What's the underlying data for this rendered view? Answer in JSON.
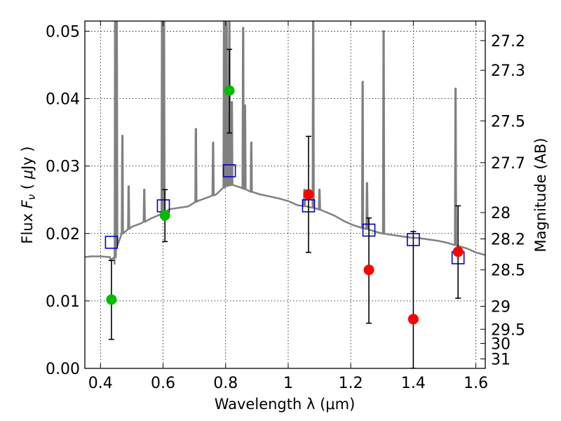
{
  "chart_data": {
    "type": "scatter",
    "xlabel": "Wavelength  λ (μm)",
    "ylabel_parts": [
      "Flux  ",
      "F",
      "ν",
      "  ( ",
      "μ",
      "Jy )"
    ],
    "ylabel_right": "Magnitude (AB)",
    "xlim": [
      0.35,
      1.63
    ],
    "ylim": [
      0.0,
      0.0515
    ],
    "x_ticks": [
      0.4,
      0.6,
      0.8,
      1.0,
      1.2,
      1.4,
      1.6
    ],
    "x_tick_labels": [
      "0.4",
      "0.6",
      "0.8",
      "1",
      "1.2",
      "1.4",
      "1.6"
    ],
    "y_ticks": [
      0.0,
      0.01,
      0.02,
      0.03,
      0.04,
      0.05
    ],
    "y_tick_labels": [
      "0.00",
      "0.01",
      "0.02",
      "0.03",
      "0.04",
      "0.05"
    ],
    "right_ticks": [
      {
        "label": "27.2",
        "flux": 0.0486
      },
      {
        "label": "27.3",
        "flux": 0.0442
      },
      {
        "label": "27.5",
        "flux": 0.0367
      },
      {
        "label": "27.7",
        "flux": 0.0305
      },
      {
        "label": "28",
        "flux": 0.0231
      },
      {
        "label": "28.2",
        "flux": 0.0192
      },
      {
        "label": "28.5",
        "flux": 0.0146
      },
      {
        "label": "29",
        "flux": 0.0092
      },
      {
        "label": "29.5",
        "flux": 0.0058
      },
      {
        "label": "30",
        "flux": 0.0037
      },
      {
        "label": "31",
        "flux": 0.0014
      }
    ],
    "grid": true,
    "colors": {
      "model": "#808080",
      "model_photometry": "#0000cc",
      "detection": "#00bb00",
      "upper_limit": "#ff0000",
      "error_bar": "#000000"
    },
    "model_spectrum": {
      "continuum": [
        [
          0.35,
          0.0165
        ],
        [
          0.37,
          0.0166
        ],
        [
          0.4,
          0.0166
        ],
        [
          0.43,
          0.0165
        ],
        [
          0.445,
          0.0155
        ],
        [
          0.45,
          0.018
        ],
        [
          0.47,
          0.02
        ],
        [
          0.5,
          0.021
        ],
        [
          0.53,
          0.0215
        ],
        [
          0.56,
          0.0222
        ],
        [
          0.59,
          0.0228
        ],
        [
          0.62,
          0.0236
        ],
        [
          0.65,
          0.0238
        ],
        [
          0.68,
          0.024
        ],
        [
          0.71,
          0.0248
        ],
        [
          0.74,
          0.0253
        ],
        [
          0.77,
          0.0258
        ],
        [
          0.8,
          0.027
        ],
        [
          0.82,
          0.0272
        ],
        [
          0.85,
          0.0268
        ],
        [
          0.88,
          0.0262
        ],
        [
          0.91,
          0.0258
        ],
        [
          0.94,
          0.0255
        ],
        [
          0.97,
          0.0252
        ],
        [
          1.0,
          0.0248
        ],
        [
          1.03,
          0.0242
        ],
        [
          1.06,
          0.024
        ],
        [
          1.09,
          0.0237
        ],
        [
          1.12,
          0.0232
        ],
        [
          1.15,
          0.0226
        ],
        [
          1.18,
          0.0218
        ],
        [
          1.21,
          0.0212
        ],
        [
          1.24,
          0.0208
        ],
        [
          1.27,
          0.0204
        ],
        [
          1.3,
          0.02
        ],
        [
          1.33,
          0.0198
        ],
        [
          1.36,
          0.0196
        ],
        [
          1.39,
          0.0194
        ],
        [
          1.42,
          0.0193
        ],
        [
          1.45,
          0.0191
        ],
        [
          1.48,
          0.0189
        ],
        [
          1.51,
          0.0186
        ],
        [
          1.54,
          0.0182
        ],
        [
          1.57,
          0.0178
        ],
        [
          1.6,
          0.0172
        ],
        [
          1.63,
          0.0168
        ]
      ],
      "emission_lines": [
        {
          "x": 0.434,
          "peak": 0.016
        },
        {
          "x": 0.447,
          "peak": 0.054
        },
        {
          "x": 0.452,
          "peak": 0.054
        },
        {
          "x": 0.47,
          "peak": 0.0345
        },
        {
          "x": 0.49,
          "peak": 0.027
        },
        {
          "x": 0.54,
          "peak": 0.0265
        },
        {
          "x": 0.597,
          "peak": 0.054
        },
        {
          "x": 0.603,
          "peak": 0.054
        },
        {
          "x": 0.705,
          "peak": 0.0355
        },
        {
          "x": 0.76,
          "peak": 0.0335
        },
        {
          "x": 0.795,
          "peak": 0.054
        },
        {
          "x": 0.803,
          "peak": 0.054
        },
        {
          "x": 0.812,
          "peak": 0.054
        },
        {
          "x": 0.82,
          "peak": 0.0395
        },
        {
          "x": 0.856,
          "peak": 0.0505
        },
        {
          "x": 0.862,
          "peak": 0.039
        },
        {
          "x": 0.882,
          "peak": 0.0335
        },
        {
          "x": 1.052,
          "peak": 0.0265
        },
        {
          "x": 1.08,
          "peak": 0.054
        },
        {
          "x": 1.1,
          "peak": 0.0265
        },
        {
          "x": 1.238,
          "peak": 0.0425
        },
        {
          "x": 1.252,
          "peak": 0.0275
        },
        {
          "x": 1.305,
          "peak": 0.05
        },
        {
          "x": 1.535,
          "peak": 0.0415
        }
      ]
    },
    "model_photometry": [
      {
        "x": 0.435,
        "y": 0.0187
      },
      {
        "x": 0.601,
        "y": 0.0241
      },
      {
        "x": 0.812,
        "y": 0.0293
      },
      {
        "x": 1.065,
        "y": 0.0241
      },
      {
        "x": 1.258,
        "y": 0.0205
      },
      {
        "x": 1.4,
        "y": 0.0191
      },
      {
        "x": 1.543,
        "y": 0.0164
      }
    ],
    "observed": [
      {
        "x": 0.435,
        "y": 0.0102,
        "yerr_low": 0.0043,
        "yerr_high": 0.016,
        "kind": "detection"
      },
      {
        "x": 0.606,
        "y": 0.0227,
        "yerr_low": 0.0188,
        "yerr_high": 0.0265,
        "kind": "detection"
      },
      {
        "x": 0.812,
        "y": 0.0412,
        "yerr_low": 0.0349,
        "yerr_high": 0.0473,
        "kind": "detection"
      },
      {
        "x": 1.065,
        "y": 0.0258,
        "yerr_low": 0.0172,
        "yerr_high": 0.0344,
        "kind": "upper_limit"
      },
      {
        "x": 1.258,
        "y": 0.0146,
        "yerr_low": 0.0067,
        "yerr_high": 0.0223,
        "kind": "upper_limit"
      },
      {
        "x": 1.4,
        "y": 0.0073,
        "yerr_low": 0.0,
        "yerr_high": 0.0203,
        "kind": "upper_limit"
      },
      {
        "x": 1.543,
        "y": 0.0173,
        "yerr_low": 0.0104,
        "yerr_high": 0.0241,
        "kind": "upper_limit"
      }
    ]
  }
}
